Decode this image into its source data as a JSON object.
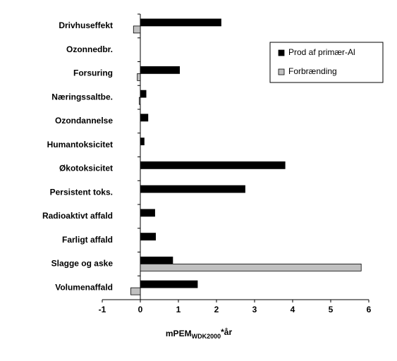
{
  "chart_data": {
    "type": "hbar",
    "categories": [
      "Drivhuseffekt",
      "Ozonnedbr.",
      "Forsuring",
      "Næringssaltbe.",
      "Ozondannelse",
      "Humantoksicitet",
      "Økotoksicitet",
      "Persistent toks.",
      "Radioaktivt affald",
      "Farligt affald",
      "Slagge og aske",
      "Volumenaffald"
    ],
    "series": [
      {
        "name": "Prod af primær-Al",
        "color": "#000000",
        "values": [
          2.12,
          0,
          1.03,
          0.15,
          0.2,
          0.1,
          3.8,
          2.75,
          0.38,
          0.4,
          0.85,
          1.5
        ]
      },
      {
        "name": "Forbrænding",
        "color": "#c0c0c0",
        "values": [
          -0.18,
          0,
          -0.08,
          -0.03,
          0,
          0,
          0,
          0,
          0,
          0,
          5.8,
          -0.25
        ]
      }
    ],
    "xlim": [
      -1,
      6
    ],
    "xticks": [
      -1,
      0,
      1,
      2,
      3,
      4,
      5,
      6
    ],
    "xlabel": "mPEM",
    "xlabel_sub": "WDK2000",
    "xlabel_suffix": "*år",
    "legend": "upper-right"
  }
}
